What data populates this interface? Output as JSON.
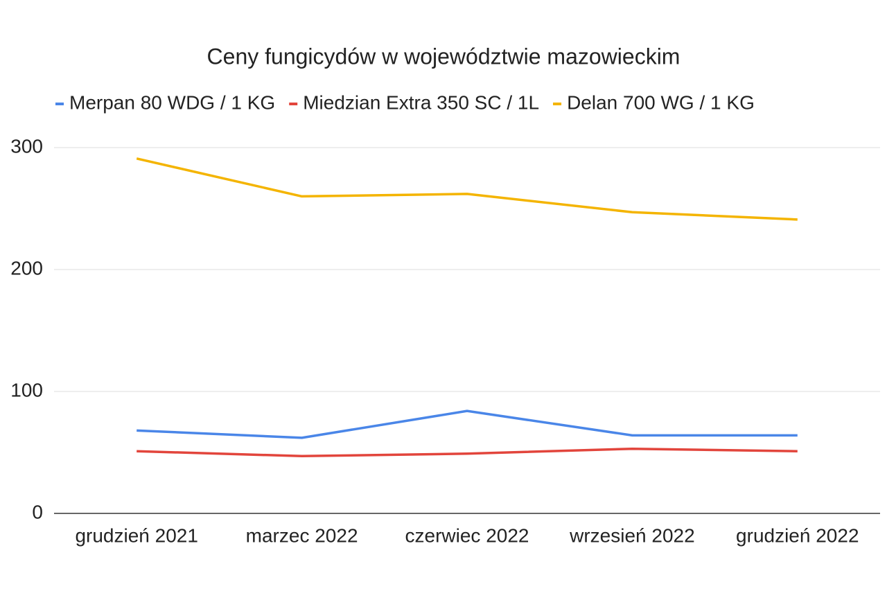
{
  "chart_data": {
    "type": "line",
    "title": "Ceny fungicydów w województwie mazowieckim",
    "categories": [
      "grudzień 2021",
      "marzec 2022",
      "czerwiec 2022",
      "wrzesień 2022",
      "grudzień 2022"
    ],
    "series": [
      {
        "name": "Merpan 80 WDG / 1 KG",
        "color": "#4a86e8",
        "values": [
          68,
          62,
          84,
          64,
          64
        ]
      },
      {
        "name": "Miedzian Extra 350 SC / 1L",
        "color": "#e2453c",
        "values": [
          51,
          47,
          49,
          53,
          51
        ]
      },
      {
        "name": "Delan 700 WG / 1 KG",
        "color": "#f4b400",
        "values": [
          291,
          260,
          262,
          247,
          241
        ]
      }
    ],
    "ylim": [
      0,
      300
    ],
    "yticks": [
      0,
      100,
      200,
      300
    ],
    "grid": true,
    "legend": "top"
  }
}
